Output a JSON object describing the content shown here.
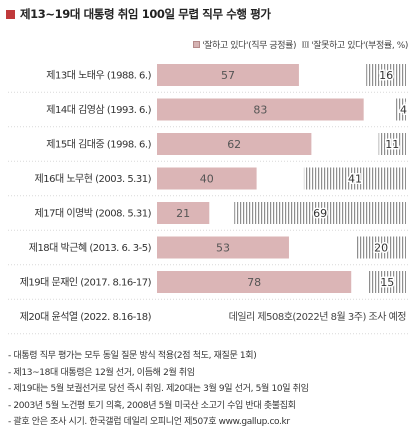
{
  "header": {
    "title": "제13~19대 대통령 취임 100일 무렵 직무 수행 평가"
  },
  "legend": {
    "positive": "'잘하고 있다'(직무 긍정률)",
    "negative": "'잘못하고 있다'(부정률, %)"
  },
  "colors": {
    "positive": "#dbb5b6",
    "negative_stripe": "#8e8e8e",
    "accent": "#c0393b"
  },
  "chart_data": {
    "type": "bar",
    "orientation": "horizontal",
    "stacked": true,
    "title": "제13~19대 대통령 취임 100일 무렵 직무 수행 평가",
    "xlim": [
      0,
      100
    ],
    "categories": [
      "제13대 노태우 (1988. 6.)",
      "제14대 김영삼 (1993. 6.)",
      "제15대 김대중 (1998. 6.)",
      "제16대 노무현 (2003. 5.31)",
      "제17대 이명박 (2008. 5.31)",
      "제18대 박근혜 (2013. 6. 3-5)",
      "제19대 문재인 (2017. 8.16-17)",
      "제20대 윤석열 (2022. 8.16-18)"
    ],
    "series": [
      {
        "name": "'잘하고 있다'(직무 긍정률)",
        "values": [
          57,
          83,
          62,
          40,
          21,
          53,
          78,
          null
        ]
      },
      {
        "name": "'잘못하고 있다'(부정률, %)",
        "values": [
          16,
          4,
          11,
          41,
          69,
          20,
          15,
          null
        ]
      }
    ],
    "annotations": [
      {
        "category": "제20대 윤석열 (2022. 8.16-18)",
        "text": "데일리 제508호(2022년 8월 3주) 조사 예정"
      }
    ]
  },
  "footnotes": [
    "- 대통령 직무 평가는 모두 동일 질문 방식 적용(2점 척도, 재질문 1회)",
    "- 제13~18대 대통령은 12월 선거, 이듬해 2월 취임",
    "- 제19대는 5월 보궐선거로 당선 즉시 취임. 제20대는 3월 9일 선거, 5월 10일 취임",
    "- 2003년 5월 노건평 토기 의혹, 2008년 5월 미국산 소고기 수입 반대 촛불집회",
    "- 괄호 안은 조사 시기. 한국갤럽 데일리 오피니언 제507호 www.gallup.co.kr"
  ]
}
